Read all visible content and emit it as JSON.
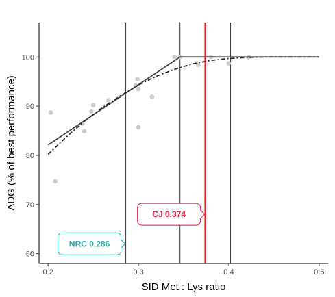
{
  "chart_data": {
    "type": "scatter",
    "xlabel": "SID Met : Lys ratio",
    "ylabel": "ADG (% of best performance)",
    "xlim": [
      0.19,
      0.51
    ],
    "ylim": [
      58,
      107
    ],
    "x_ticks": [
      0.2,
      0.3,
      0.4,
      0.5
    ],
    "x_tick_labels": [
      "0.2",
      "0.3",
      "0.4",
      "0.5"
    ],
    "y_ticks": [
      60,
      70,
      80,
      90,
      100
    ],
    "y_tick_labels": [
      "60",
      "70",
      "80",
      "90",
      "100"
    ],
    "grid": false,
    "points": [
      {
        "x": 0.203,
        "y": 88.7
      },
      {
        "x": 0.208,
        "y": 74.7
      },
      {
        "x": 0.238,
        "y": 86.5
      },
      {
        "x": 0.24,
        "y": 84.9
      },
      {
        "x": 0.248,
        "y": 88.9
      },
      {
        "x": 0.25,
        "y": 90.2
      },
      {
        "x": 0.267,
        "y": 91.2
      },
      {
        "x": 0.297,
        "y": 94.2
      },
      {
        "x": 0.299,
        "y": 95.5
      },
      {
        "x": 0.3,
        "y": 93.5
      },
      {
        "x": 0.3,
        "y": 85.7
      },
      {
        "x": 0.315,
        "y": 91.9
      },
      {
        "x": 0.34,
        "y": 100.0
      },
      {
        "x": 0.346,
        "y": 100.0
      },
      {
        "x": 0.366,
        "y": 98.4
      },
      {
        "x": 0.38,
        "y": 100.0
      },
      {
        "x": 0.4,
        "y": 98.7
      },
      {
        "x": 0.422,
        "y": 100.0
      }
    ],
    "series": [
      {
        "style": "solid",
        "color": "#404040",
        "x": [
          0.2,
          0.346,
          0.5
        ],
        "y": [
          82.1,
          100.0,
          100.0
        ]
      },
      {
        "style": "dashed",
        "color": "#222222",
        "x": [
          0.2,
          0.22,
          0.24,
          0.26,
          0.28,
          0.3,
          0.32,
          0.34,
          0.36,
          0.38,
          0.4,
          0.42,
          0.44,
          0.46,
          0.48,
          0.5
        ],
        "y": [
          80.2,
          83.7,
          86.9,
          89.7,
          92.1,
          94.3,
          96.1,
          97.5,
          98.6,
          99.3,
          99.7,
          99.9,
          100.0,
          100.0,
          100.0,
          100.0
        ]
      }
    ],
    "vlines": [
      {
        "x": 0.286,
        "color": "#333333"
      },
      {
        "x": 0.346,
        "color": "#333333"
      },
      {
        "x": 0.402,
        "color": "#333333"
      },
      {
        "x": 0.374,
        "color": "#e41a1c",
        "bold": true
      }
    ],
    "callouts": [
      {
        "label": "NRC 0.286",
        "x": 0.286,
        "y": 62,
        "color": "#2ca6a4",
        "side": "left"
      },
      {
        "label": "CJ 0.374",
        "x": 0.374,
        "y": 68,
        "color": "#e31a3c",
        "side": "left"
      }
    ]
  }
}
